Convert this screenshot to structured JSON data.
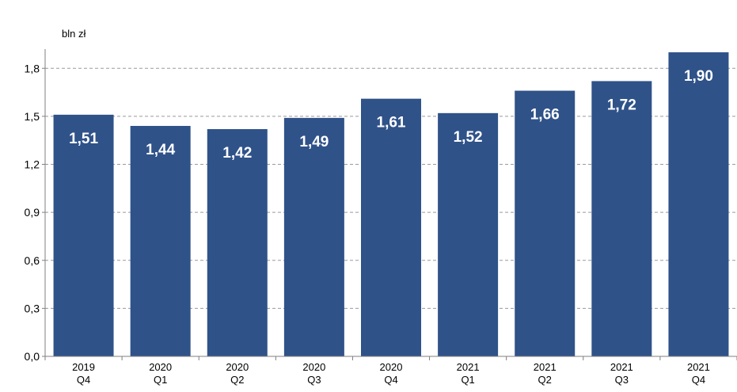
{
  "chart_data": {
    "type": "bar",
    "unit_label": "bln zł",
    "categories": [
      [
        "2019",
        "Q4"
      ],
      [
        "2020",
        "Q1"
      ],
      [
        "2020",
        "Q2"
      ],
      [
        "2020",
        "Q3"
      ],
      [
        "2020",
        "Q4"
      ],
      [
        "2021",
        "Q1"
      ],
      [
        "2021",
        "Q2"
      ],
      [
        "2021",
        "Q3"
      ],
      [
        "2021",
        "Q4"
      ]
    ],
    "values": [
      1.51,
      1.44,
      1.42,
      1.49,
      1.61,
      1.52,
      1.66,
      1.72,
      1.9
    ],
    "value_labels": [
      "1,51",
      "1,44",
      "1,42",
      "1,49",
      "1,61",
      "1,52",
      "1,66",
      "1,72",
      "1,90"
    ],
    "yticks": [
      0,
      0.3,
      0.6,
      0.9,
      1.2,
      1.5,
      1.8
    ],
    "ytick_labels": [
      "0,0",
      "0,3",
      "0,6",
      "0,9",
      "1,2",
      "1,5",
      "1,8"
    ],
    "ylim": [
      0,
      1.92
    ],
    "grid": "horizontal dashed",
    "legend": "none",
    "colors": {
      "bar": "#2f5289",
      "grid": "#9a9a9a",
      "axis": "#7f7f7f"
    }
  }
}
